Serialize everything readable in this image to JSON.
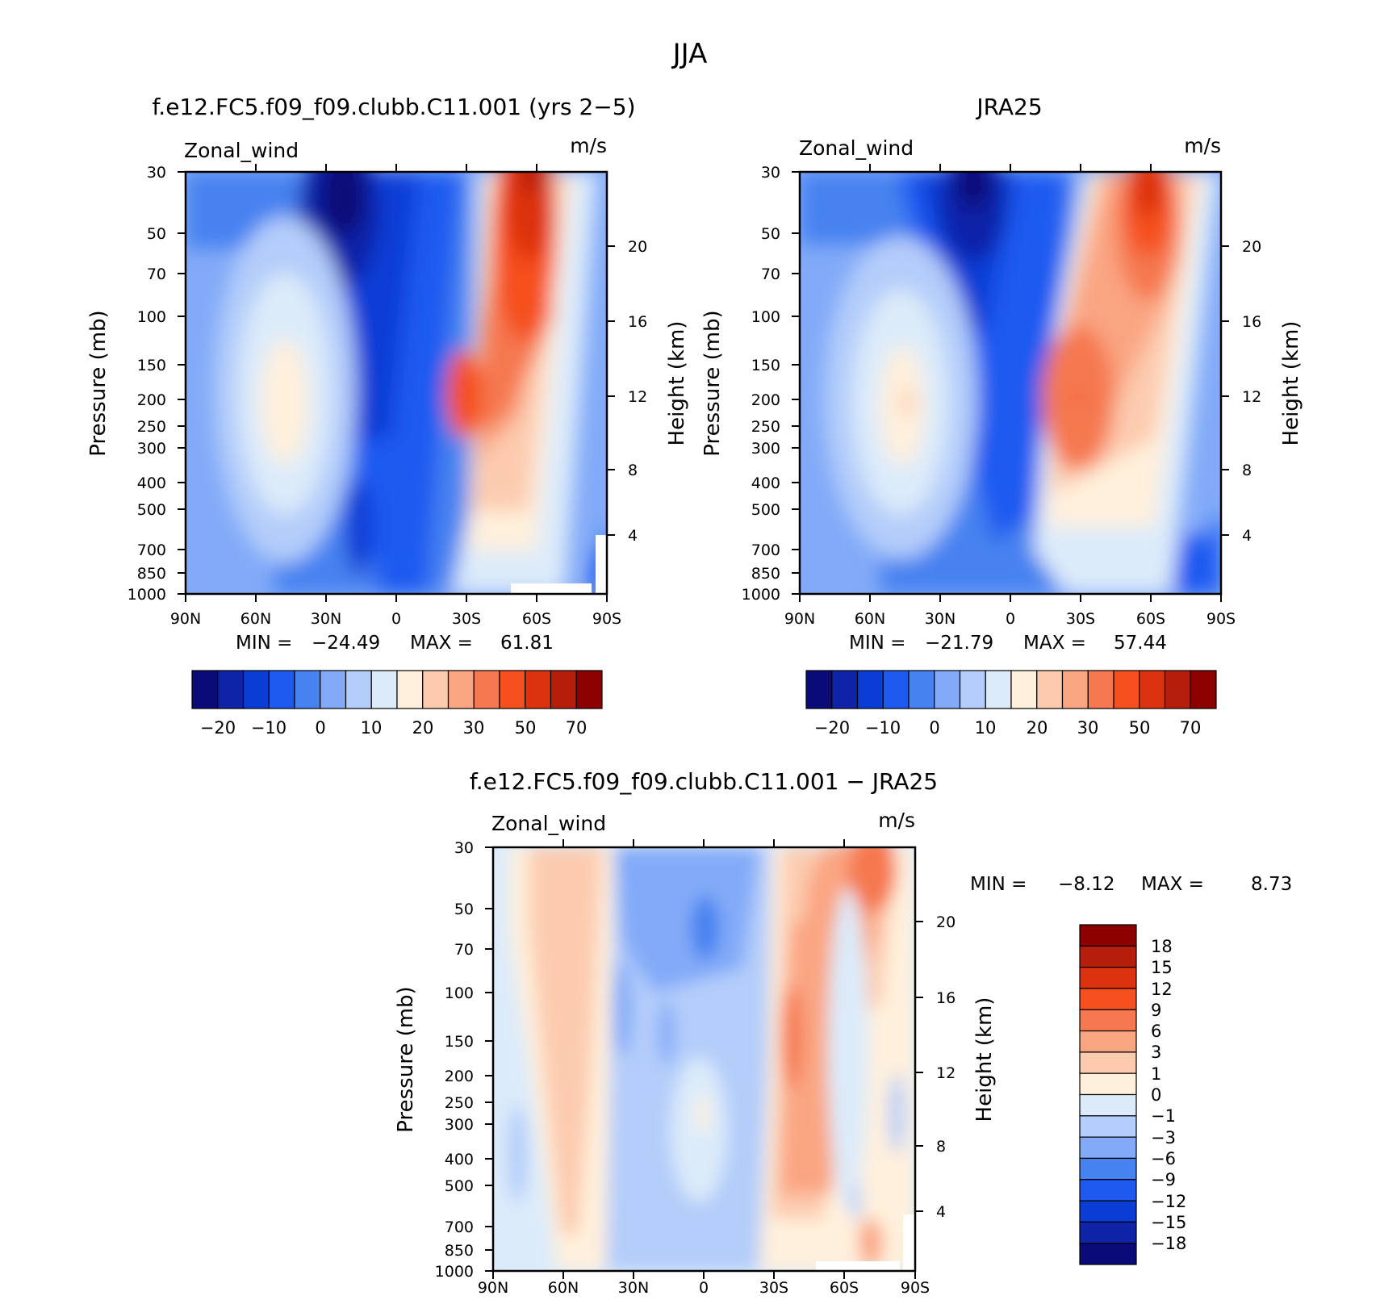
{
  "figure": {
    "title": "JJA"
  },
  "chart_data": [
    {
      "type": "contour",
      "title": "f.e12.FC5.f09_f09.clubb.C11.001 (yrs 2−5)",
      "variable": "Zonal_wind",
      "units": "m/s",
      "ylabel": "Pressure (mb)",
      "y2label": "Height (km)",
      "x_ticks": [
        "90N",
        "60N",
        "30N",
        "0",
        "30S",
        "60S",
        "90S"
      ],
      "y_ticks": [
        "30",
        "50",
        "70",
        "100",
        "150",
        "200",
        "250",
        "300",
        "400",
        "500",
        "700",
        "850",
        "1000"
      ],
      "y2_ticks": [
        "20",
        "16",
        "12",
        "8",
        "4"
      ],
      "stats": {
        "min_label": "MIN =",
        "min": "−24.49",
        "max_label": "MAX =",
        "max": "61.81"
      },
      "colorbar_ticks": [
        "−20",
        "−10",
        "0",
        "10",
        "20",
        "30",
        "50",
        "70"
      ],
      "colors": [
        "#0a0a78",
        "#0f23a8",
        "#0a3cd6",
        "#1e5af0",
        "#4682f0",
        "#82aaf8",
        "#b4cdfa",
        "#dcebfa",
        "#fff0dc",
        "#fccbaf",
        "#faa582",
        "#f57850",
        "#f5501e",
        "#dc320f",
        "#b41e0a",
        "#8c0000"
      ],
      "features": [
        {
          "lat": -45,
          "p": 200,
          "level": 8
        },
        {
          "lat": -50,
          "p": 250,
          "level": 7
        },
        {
          "lat": -17,
          "p": 40,
          "level": 0
        },
        {
          "lat": 48,
          "p": 200,
          "level": 8
        },
        {
          "lat": 58,
          "p": 35,
          "level": 13
        }
      ]
    },
    {
      "type": "contour",
      "title": "JRA25",
      "variable": "Zonal_wind",
      "units": "m/s",
      "ylabel": "Pressure (mb)",
      "y2label": "Height (km)",
      "x_ticks": [
        "90N",
        "60N",
        "30N",
        "0",
        "30S",
        "60S",
        "90S"
      ],
      "y_ticks": [
        "30",
        "50",
        "70",
        "100",
        "150",
        "200",
        "250",
        "300",
        "400",
        "500",
        "700",
        "850",
        "1000"
      ],
      "y2_ticks": [
        "20",
        "16",
        "12",
        "8",
        "4"
      ],
      "stats": {
        "min_label": "MIN =",
        "min": "−21.79",
        "max_label": "MAX =",
        "max": "57.44"
      },
      "colorbar_ticks": [
        "−20",
        "−10",
        "0",
        "10",
        "20",
        "30",
        "50",
        "70"
      ],
      "colors": [
        "#0a0a78",
        "#0f23a8",
        "#0a3cd6",
        "#1e5af0",
        "#4682f0",
        "#82aaf8",
        "#b4cdfa",
        "#dcebfa",
        "#fff0dc",
        "#fccbaf",
        "#faa582",
        "#f57850",
        "#f5501e",
        "#dc320f",
        "#b41e0a",
        "#8c0000"
      ],
      "features": [
        {
          "lat": -45,
          "p": 200,
          "level": 8
        },
        {
          "lat": -17,
          "p": 35,
          "level": 0
        },
        {
          "lat": 30,
          "p": 200,
          "level": 11
        },
        {
          "lat": 58,
          "p": 35,
          "level": 13
        }
      ]
    },
    {
      "type": "contour",
      "title": "f.e12.FC5.f09_f09.clubb.C11.001 − JRA25",
      "variable": "Zonal_wind",
      "units": "m/s",
      "ylabel": "Pressure (mb)",
      "y2label": "Height (km)",
      "x_ticks": [
        "90N",
        "60N",
        "30N",
        "0",
        "30S",
        "60S",
        "90S"
      ],
      "y_ticks": [
        "30",
        "50",
        "70",
        "100",
        "150",
        "200",
        "250",
        "300",
        "400",
        "500",
        "700",
        "850",
        "1000"
      ],
      "y2_ticks": [
        "20",
        "16",
        "12",
        "8",
        "4"
      ],
      "stats": {
        "min_label": "MIN =",
        "min": "−8.12",
        "max_label": "MAX =",
        "max": "8.73"
      },
      "colorbar_ticks": [
        "18",
        "15",
        "12",
        "9",
        "6",
        "3",
        "1",
        "0",
        "−1",
        "−3",
        "−6",
        "−9",
        "−12",
        "−15",
        "−18"
      ],
      "colors": [
        "#8c0000",
        "#b41e0a",
        "#dc320f",
        "#f5501e",
        "#f57850",
        "#faa582",
        "#fccbaf",
        "#fff0dc",
        "#dcebfa",
        "#b4cdfa",
        "#82aaf8",
        "#4682f0",
        "#1e5af0",
        "#0a3cd6",
        "#0f23a8",
        "#0a0a78"
      ],
      "features": [
        {
          "lat": 47,
          "p": 150,
          "level": 6
        },
        {
          "lat": -33,
          "p": 150,
          "level": 4
        },
        {
          "lat": -70,
          "p": 40,
          "level": 4
        },
        {
          "lat": 0,
          "p": 60,
          "level": 11
        }
      ]
    }
  ]
}
